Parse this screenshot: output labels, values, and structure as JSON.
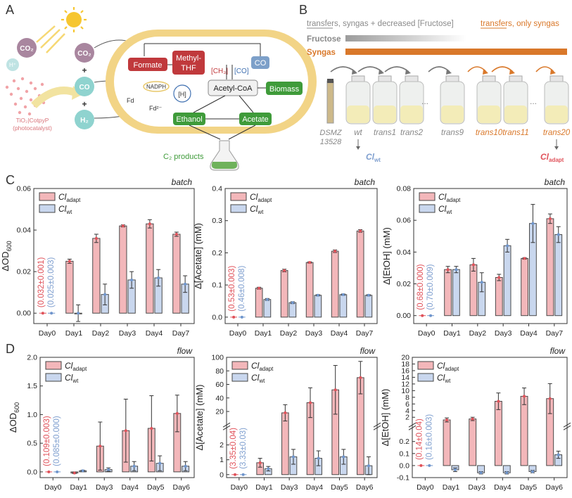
{
  "colors": {
    "adapt": "#f3b7ba",
    "adapt_edge": "#4a4a4a",
    "adapt_text": "#e0525a",
    "wt": "#c9d7ee",
    "wt_text": "#7f9fcf",
    "wt_dot": "#6f95cc",
    "adapt_dot": "#e0525a",
    "brown": "#d9782a",
    "green": "#3f9b3a",
    "red_box": "#c0393c",
    "cell_outer": "#f2d486"
  },
  "panelA": {
    "label": "A",
    "co2_left": "CO₂",
    "h_plus": "H⁺",
    "catalyst_line1": "TiO₂|CotpyP",
    "catalyst_line2": "(photocatalyst)",
    "co2": "CO₂",
    "co": "CO",
    "h2": "H₂",
    "plus": "+",
    "formate": "Formate",
    "methyl_thf_1": "Methyl-",
    "methyl_thf_2": "THF",
    "ch3": "[CH₃]",
    "co_bracket": "[CO]",
    "co_box": "CO",
    "nadph": "NADPH",
    "h_bracket": "[H]",
    "fd": "Fd",
    "fd2": "Fd²⁻",
    "acetyl_coa": "Acetyl-CoA",
    "biomass": "Biomass",
    "ethanol": "Ethanol",
    "acetate": "Acetate",
    "c2_products": "C₂ products"
  },
  "panelB": {
    "label": "B",
    "legend_1": "transfers, syngas + decreased [Fructose]",
    "legend_2": "transfers, only syngas",
    "fructose": "Fructose",
    "syngas": "Syngas",
    "bottles": [
      "DSMZ 13528",
      "wt",
      "trans1",
      "trans2",
      "trans9",
      "trans10",
      "trans11",
      "trans20"
    ],
    "dsmz_1": "DSMZ",
    "dsmz_2": "13528",
    "ellipsis": "...",
    "cl_wt_base": "Cl",
    "cl_wt_sub": "wt",
    "cl_adapt_base": "Cl",
    "cl_adapt_sub": "adapt"
  },
  "panelC_label": "C",
  "panelD_label": "D",
  "legend": {
    "base": "Cl",
    "adapt_sub": "adapt",
    "wt_sub": "wt"
  },
  "chart_data": [
    {
      "id": "C1",
      "type": "bar",
      "corner": "batch",
      "ylabel": "ΔOD",
      "ylabel_sub": "600",
      "categories": [
        "Day0",
        "Day1",
        "Day2",
        "Day3",
        "Day4",
        "Day7"
      ],
      "ylim": [
        -0.005,
        0.06
      ],
      "yticks": [
        0.0,
        0.02,
        0.04,
        0.06
      ],
      "ytick_labels": [
        "0.00",
        "0.02",
        "0.04",
        "0.06"
      ],
      "baseline_adapt": "(0.032±0.001)",
      "baseline_wt": "(0.025±0.003)",
      "series": [
        {
          "name": "Cl adapt",
          "values": [
            0,
            0.025,
            0.036,
            0.042,
            0.043,
            0.038
          ],
          "err": [
            0,
            0.001,
            0.002,
            0.0005,
            0.002,
            0.001
          ]
        },
        {
          "name": "Cl wt",
          "values": [
            0,
            0.0,
            0.009,
            0.016,
            0.017,
            0.014
          ],
          "err": [
            0,
            0.004,
            0.005,
            0.004,
            0.004,
            0.004
          ]
        }
      ]
    },
    {
      "id": "C2",
      "type": "bar",
      "corner": "batch",
      "ylabel": "Δ[Acetate] (mM)",
      "ylabel_sub": "",
      "categories": [
        "Day0",
        "Day1",
        "Day2",
        "Day3",
        "Day4",
        "Day7"
      ],
      "ylim": [
        -0.02,
        0.4
      ],
      "yticks": [
        0.0,
        0.1,
        0.2,
        0.3,
        0.4
      ],
      "ytick_labels": [
        "0.0",
        "0.1",
        "0.2",
        "0.3",
        "0.4"
      ],
      "baseline_adapt": "(0.53±0.003)",
      "baseline_wt": "(0.46±0.008)",
      "series": [
        {
          "name": "Cl adapt",
          "values": [
            0,
            0.09,
            0.145,
            0.17,
            0.205,
            0.268
          ],
          "err": [
            0,
            0.003,
            0.004,
            0.002,
            0.004,
            0.004
          ]
        },
        {
          "name": "Cl wt",
          "values": [
            0,
            0.055,
            0.045,
            0.068,
            0.07,
            0.068
          ],
          "err": [
            0,
            0.003,
            0.003,
            0.002,
            0.002,
            0.002
          ]
        }
      ]
    },
    {
      "id": "C3",
      "type": "bar",
      "corner": "batch",
      "ylabel": "Δ[EtOH] (mM)",
      "ylabel_sub": "",
      "categories": [
        "Day0",
        "Day1",
        "Day2",
        "Day3",
        "Day4",
        "Day7"
      ],
      "ylim": [
        -0.005,
        0.08
      ],
      "yticks": [
        0.0,
        0.02,
        0.04,
        0.06,
        0.08
      ],
      "ytick_labels": [
        "0.00",
        "0.02",
        "0.04",
        "0.06",
        "0.08"
      ],
      "baseline_adapt": "(0.68±0.000)",
      "baseline_wt": "(0.70±0.009)",
      "series": [
        {
          "name": "Cl adapt",
          "values": [
            0,
            0.029,
            0.032,
            0.024,
            0.036,
            0.061
          ],
          "err": [
            0,
            0.002,
            0.004,
            0.002,
            0.0005,
            0.003
          ]
        },
        {
          "name": "Cl wt",
          "values": [
            0,
            0.029,
            0.021,
            0.044,
            0.058,
            0.051
          ],
          "err": [
            0,
            0.002,
            0.006,
            0.004,
            0.012,
            0.005
          ]
        }
      ]
    },
    {
      "id": "D1",
      "type": "bar",
      "corner": "flow",
      "ylabel": "ΔOD",
      "ylabel_sub": "600",
      "categories": [
        "Day0",
        "Day1",
        "Day3",
        "Day4",
        "Day5",
        "Day6"
      ],
      "ylim": [
        -0.1,
        2.0
      ],
      "yticks": [
        0.0,
        0.5,
        1.0,
        1.5,
        2.0
      ],
      "ytick_labels": [
        "0.0",
        "0.5",
        "1.0",
        "1.5",
        "2.0"
      ],
      "baseline_adapt": "(0.109±0.003)",
      "baseline_wt": "(0.085±0.000)",
      "series": [
        {
          "name": "Cl adapt",
          "values": [
            0,
            -0.02,
            0.45,
            0.72,
            0.76,
            1.02
          ],
          "err": [
            0,
            0.01,
            0.42,
            0.55,
            0.57,
            0.32
          ]
        },
        {
          "name": "Cl wt",
          "values": [
            0,
            0.02,
            0.04,
            0.1,
            0.15,
            0.1
          ],
          "err": [
            0,
            0.01,
            0.03,
            0.08,
            0.13,
            0.08
          ]
        }
      ]
    },
    {
      "id": "D2",
      "type": "bar",
      "corner": "flow",
      "ylabel": "Δ[Acetate] (mM)",
      "ylabel_sub": "",
      "categories": [
        "Day0",
        "Day1",
        "Day3",
        "Day4",
        "Day5",
        "Day6"
      ],
      "axis_break": {
        "lower": [
          -0.2,
          3.2
        ],
        "upper": [
          3.2,
          100
        ]
      },
      "yticks": [
        0,
        1,
        2,
        20,
        40,
        60,
        80,
        100
      ],
      "ytick_labels": [
        "0",
        "1",
        "2",
        "20",
        "40",
        "60",
        "80",
        "100"
      ],
      "baseline_adapt": "(3.35±0.04)",
      "baseline_wt": "(3.33±0.03)",
      "series": [
        {
          "name": "Cl adapt",
          "values": [
            0,
            0.8,
            18,
            33,
            52,
            70
          ],
          "err": [
            0,
            0.3,
            12,
            22,
            36,
            24
          ]
        },
        {
          "name": "Cl wt",
          "values": [
            0,
            0.4,
            1.2,
            1.1,
            1.2,
            0.6
          ],
          "err": [
            0,
            0.15,
            0.5,
            0.5,
            0.5,
            0.6
          ]
        }
      ]
    },
    {
      "id": "D3",
      "type": "bar",
      "corner": "flow",
      "ylabel": "Δ[EtOH] (mM)",
      "ylabel_sub": "",
      "categories": [
        "Day0",
        "Day1",
        "Day3",
        "Day4",
        "Day5",
        "Day6"
      ],
      "axis_break": {
        "lower": [
          -0.1,
          0.32
        ],
        "upper": [
          0.32,
          20
        ]
      },
      "yticks": [
        -0.1,
        0.0,
        0.1,
        0.2,
        2,
        4,
        6,
        8,
        10,
        12,
        14,
        16,
        18,
        20
      ],
      "ytick_labels": [
        "-0.1",
        "0.0",
        "0.1",
        "0.2",
        "2",
        "4",
        "6",
        "8",
        "10",
        "12",
        "14",
        "16",
        "18",
        "20"
      ],
      "baseline_adapt": "(0.14±0.04)",
      "baseline_wt": "(0.16±0.003)",
      "series": [
        {
          "name": "Cl adapt",
          "values": [
            0,
            1.2,
            1.5,
            6.8,
            8.3,
            7.6
          ],
          "err": [
            0,
            0.6,
            0.5,
            2.5,
            2.5,
            4.5
          ]
        },
        {
          "name": "Cl wt",
          "values": [
            0,
            -0.035,
            -0.06,
            -0.06,
            -0.05,
            0.09
          ],
          "err": [
            0,
            0.015,
            0.01,
            0.01,
            0.01,
            0.03
          ]
        }
      ]
    }
  ]
}
